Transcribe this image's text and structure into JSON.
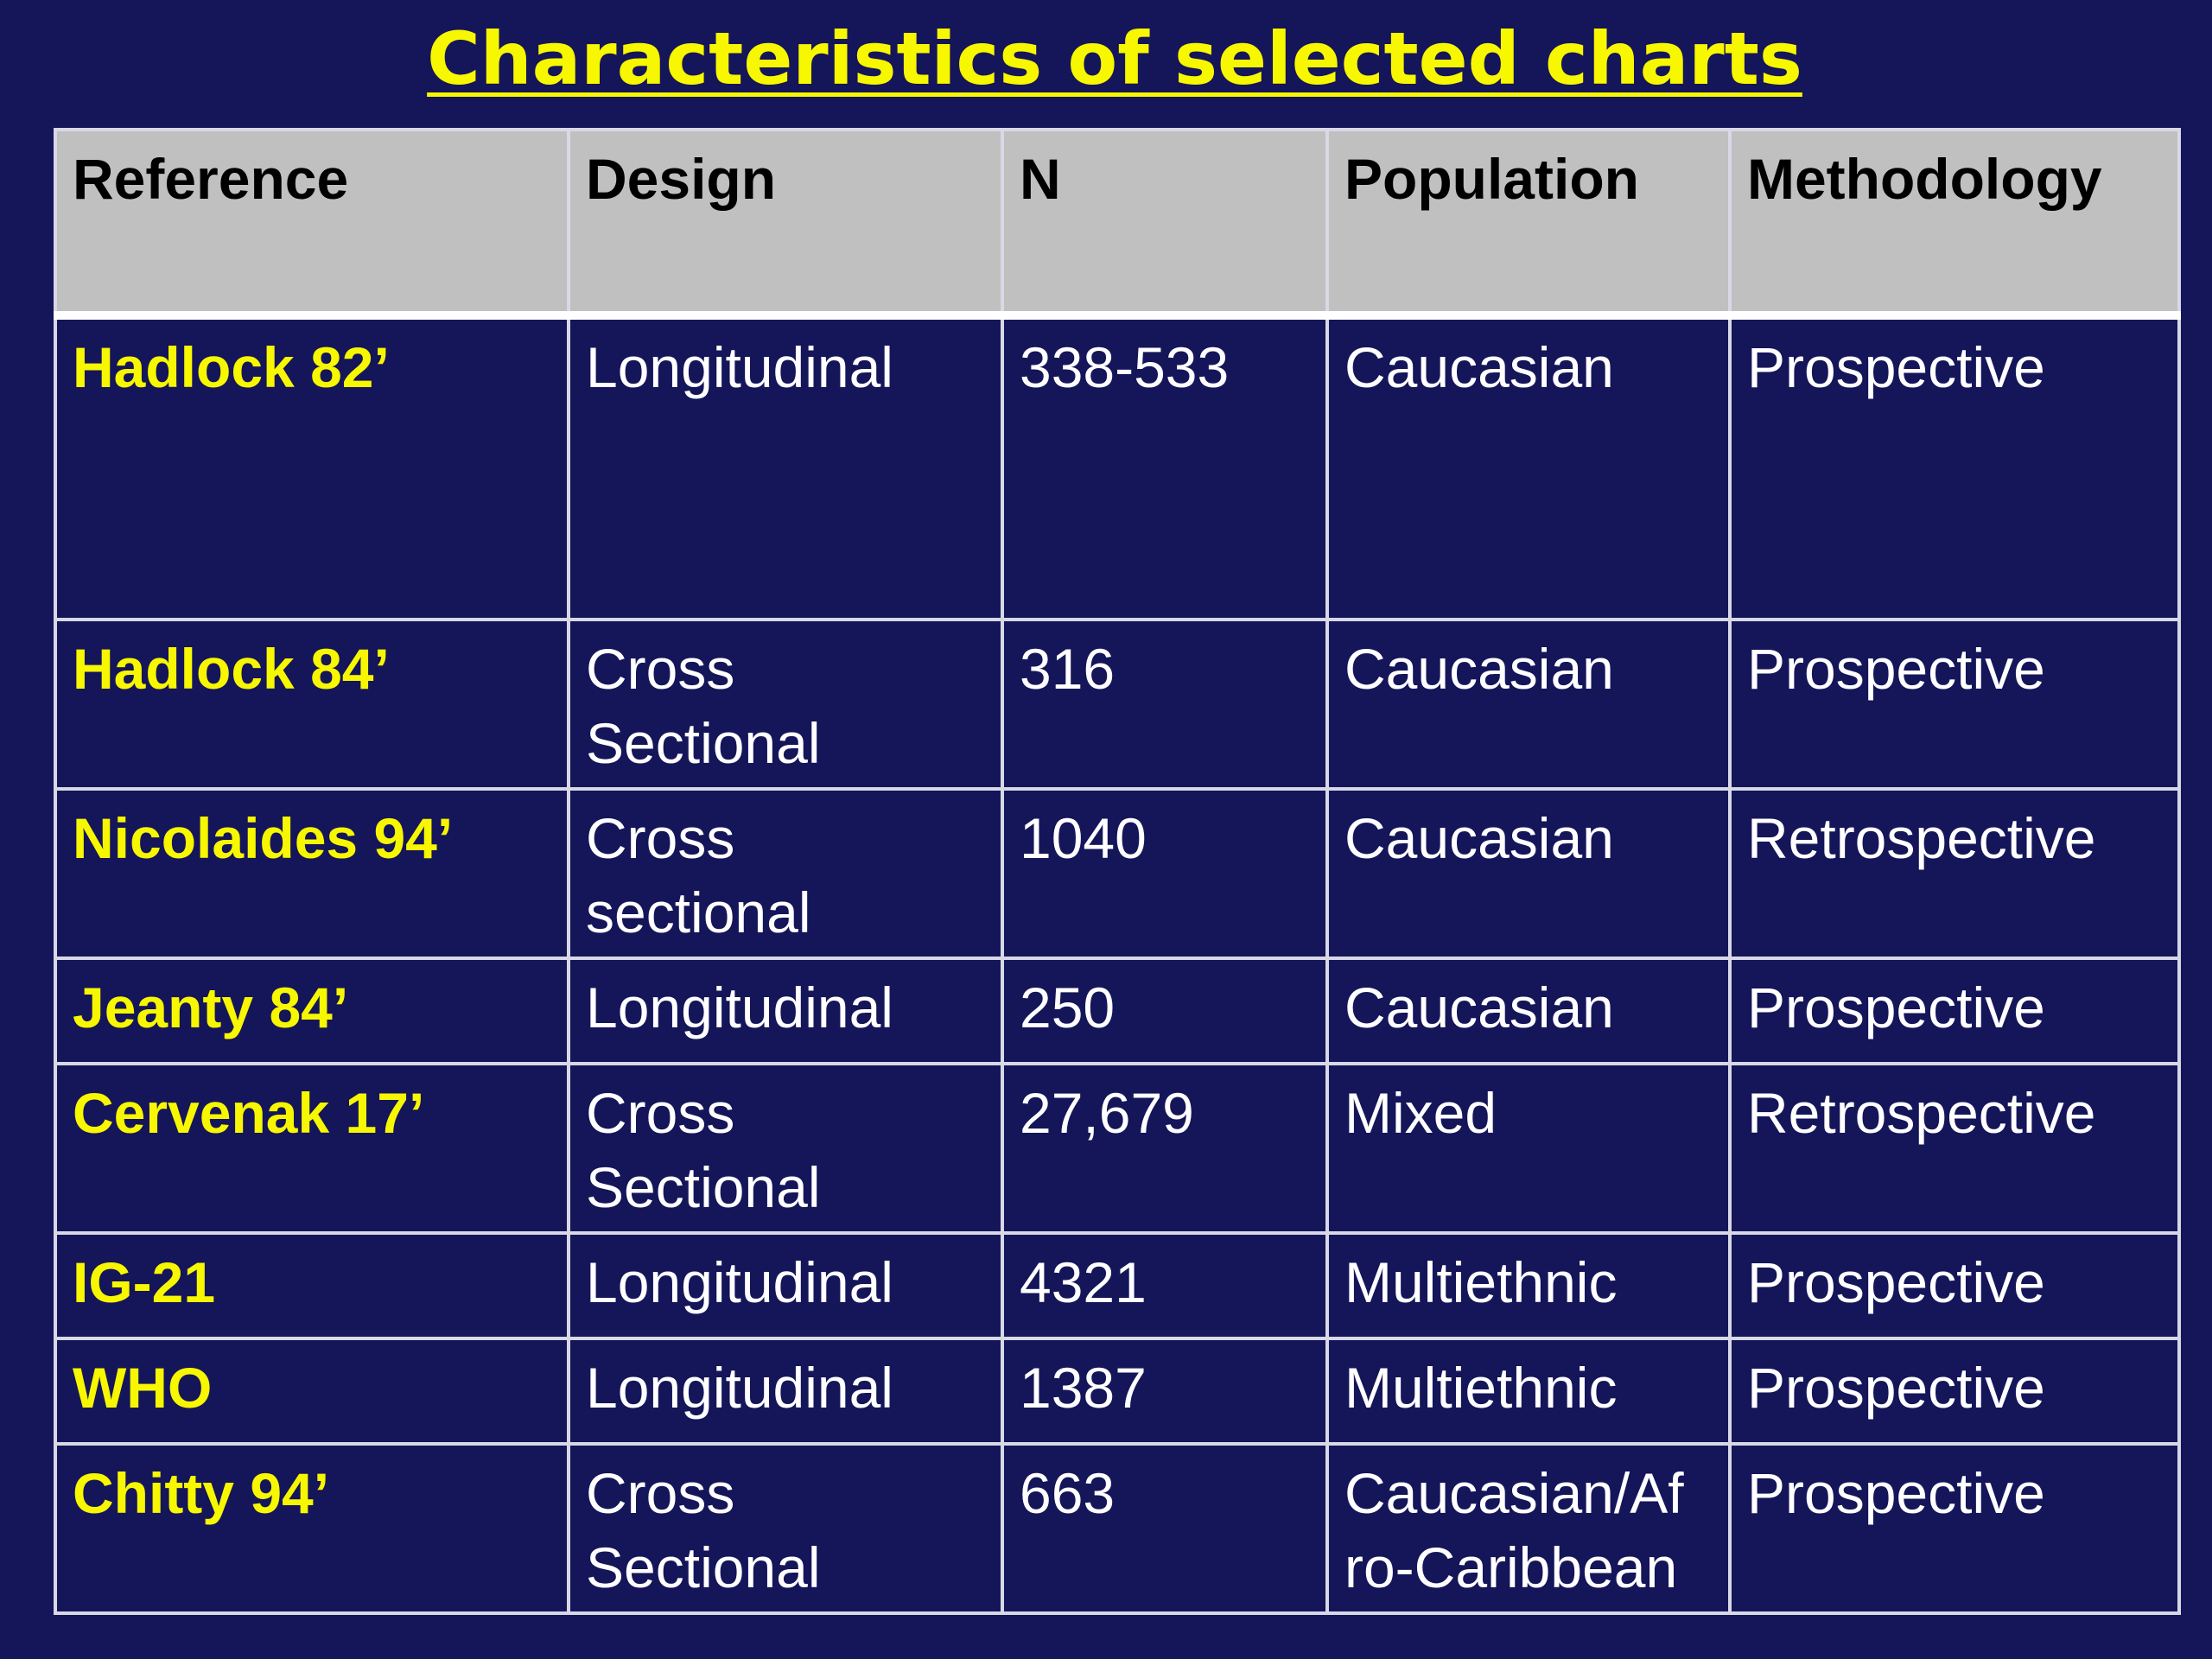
{
  "title": "Characteristics of selected charts",
  "table": {
    "headers": [
      "Reference",
      "Design",
      "N",
      "Population",
      "Methodology"
    ],
    "rows": [
      {
        "reference": "Hadlock 82’",
        "design": [
          "Longitudinal"
        ],
        "design_bold": true,
        "n": "338-533",
        "population": [
          "Caucasian"
        ],
        "methodology": "Prospective"
      },
      {
        "reference": "Hadlock 84’",
        "design": [
          "Cross",
          "Sectional"
        ],
        "design_bold": false,
        "n": "316",
        "population": [
          "Caucasian"
        ],
        "methodology": "Prospective"
      },
      {
        "reference": "Nicolaides 94’",
        "design": [
          "Cross",
          "sectional"
        ],
        "design_bold": false,
        "n": "1040",
        "population": [
          "Caucasian"
        ],
        "methodology": "Retrospective"
      },
      {
        "reference": "Jeanty 84’",
        "design": [
          "Longitudinal"
        ],
        "design_bold": false,
        "n": "250",
        "population": [
          "Caucasian"
        ],
        "methodology": "Prospective"
      },
      {
        "reference": "Cervenak 17’",
        "design": [
          "Cross",
          "Sectional"
        ],
        "design_bold": false,
        "n": "27,679",
        "population": [
          "Mixed"
        ],
        "methodology": "Retrospective"
      },
      {
        "reference": "IG-21",
        "design": [
          "Longitudinal"
        ],
        "design_bold": false,
        "n": "4321",
        "population": [
          "Multiethnic"
        ],
        "methodology": "Prospective"
      },
      {
        "reference": "WHO",
        "design": [
          "Longitudinal"
        ],
        "design_bold": false,
        "n": "1387",
        "population": [
          "Multiethnic"
        ],
        "methodology": "Prospective"
      },
      {
        "reference": "Chitty 94’",
        "design": [
          "Cross",
          "Sectional"
        ],
        "design_bold": false,
        "n": "663",
        "population": [
          "Caucasian/Af",
          "ro-Caribbean"
        ],
        "methodology": "Prospective"
      }
    ]
  }
}
